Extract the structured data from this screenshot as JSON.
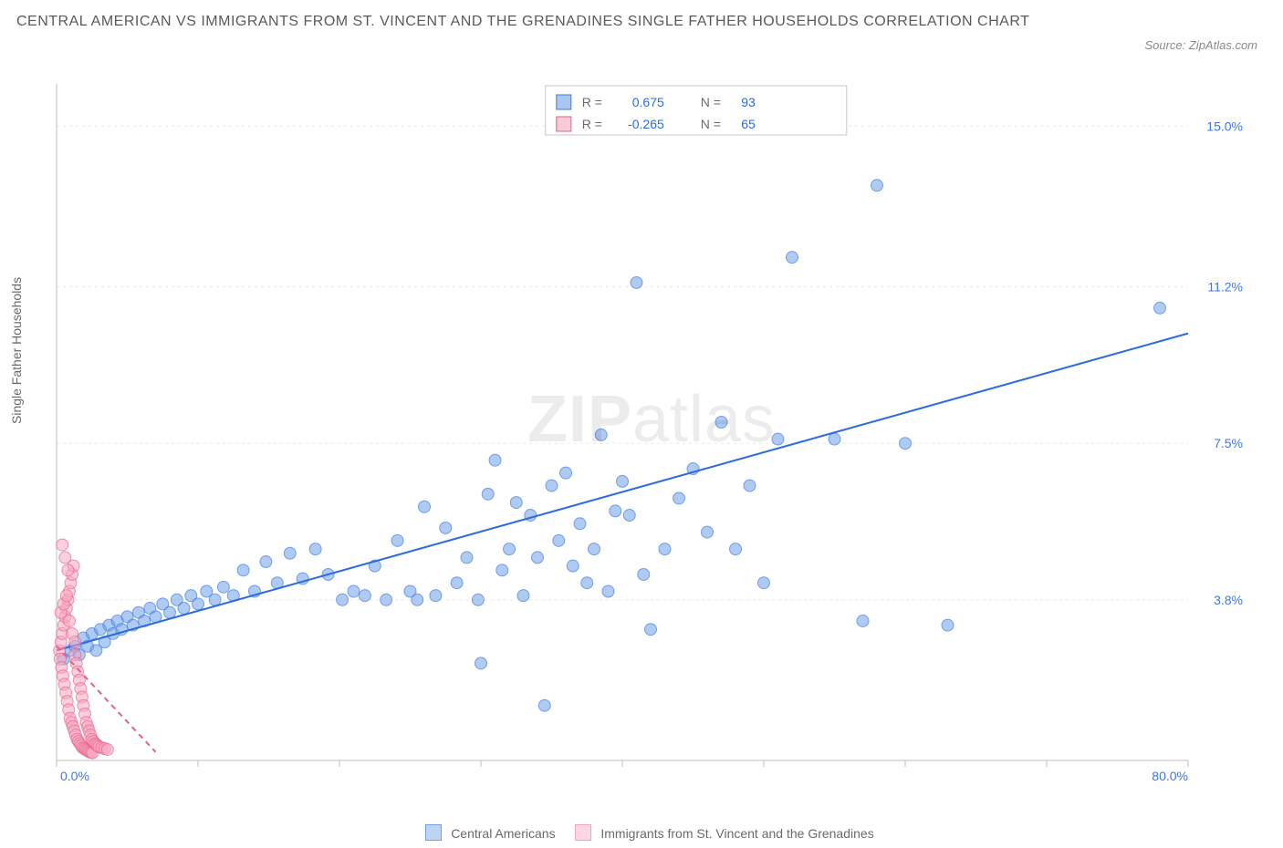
{
  "title": "CENTRAL AMERICAN VS IMMIGRANTS FROM ST. VINCENT AND THE GRENADINES SINGLE FATHER HOUSEHOLDS CORRELATION CHART",
  "source": "Source: ZipAtlas.com",
  "ylabel": "Single Father Households",
  "watermark_bold": "ZIP",
  "watermark_rest": "atlas",
  "chart": {
    "type": "scatter",
    "xlim": [
      0,
      80
    ],
    "ylim": [
      0,
      16
    ],
    "x_tick_step": 10,
    "x_tick_labels": {
      "0": "0.0%",
      "80": "80.0%"
    },
    "y_ticks": [
      3.8,
      7.5,
      11.2,
      15.0
    ],
    "y_tick_labels": [
      "3.8%",
      "7.5%",
      "11.2%",
      "15.0%"
    ],
    "grid_color": "#e7e7e7",
    "axis_color": "#bfbfbf",
    "tick_color": "#bfbfbf",
    "ytick_text_color": "#3b78e7",
    "xtick_text_color": "#3b78e7",
    "background": "#ffffff",
    "point_radius": 6.5,
    "point_opacity": 0.55,
    "trend_width": 2
  },
  "series": [
    {
      "id": "central_americans",
      "label": "Central Americans",
      "color": "#6fa1e8",
      "stroke": "#3b78e7",
      "trend_color": "#2d6cdf",
      "R": "0.675",
      "N": "93",
      "trend": {
        "x1": 0,
        "y1": 2.6,
        "x2": 80,
        "y2": 10.1
      },
      "points": [
        [
          0.5,
          2.4
        ],
        [
          1.0,
          2.6
        ],
        [
          1.3,
          2.7
        ],
        [
          1.6,
          2.5
        ],
        [
          1.9,
          2.9
        ],
        [
          2.2,
          2.7
        ],
        [
          2.5,
          3.0
        ],
        [
          2.8,
          2.6
        ],
        [
          3.1,
          3.1
        ],
        [
          3.4,
          2.8
        ],
        [
          3.7,
          3.2
        ],
        [
          4.0,
          3.0
        ],
        [
          4.3,
          3.3
        ],
        [
          4.6,
          3.1
        ],
        [
          5.0,
          3.4
        ],
        [
          5.4,
          3.2
        ],
        [
          5.8,
          3.5
        ],
        [
          6.2,
          3.3
        ],
        [
          6.6,
          3.6
        ],
        [
          7.0,
          3.4
        ],
        [
          7.5,
          3.7
        ],
        [
          8.0,
          3.5
        ],
        [
          8.5,
          3.8
        ],
        [
          9.0,
          3.6
        ],
        [
          9.5,
          3.9
        ],
        [
          10.0,
          3.7
        ],
        [
          10.6,
          4.0
        ],
        [
          11.2,
          3.8
        ],
        [
          11.8,
          4.1
        ],
        [
          12.5,
          3.9
        ],
        [
          13.2,
          4.5
        ],
        [
          14.0,
          4.0
        ],
        [
          14.8,
          4.7
        ],
        [
          15.6,
          4.2
        ],
        [
          16.5,
          4.9
        ],
        [
          17.4,
          4.3
        ],
        [
          18.3,
          5.0
        ],
        [
          19.2,
          4.4
        ],
        [
          20.2,
          3.8
        ],
        [
          21.0,
          4.0
        ],
        [
          21.8,
          3.9
        ],
        [
          22.5,
          4.6
        ],
        [
          23.3,
          3.8
        ],
        [
          24.1,
          5.2
        ],
        [
          25.0,
          4.0
        ],
        [
          25.5,
          3.8
        ],
        [
          26.0,
          6.0
        ],
        [
          26.8,
          3.9
        ],
        [
          27.5,
          5.5
        ],
        [
          28.3,
          4.2
        ],
        [
          29.0,
          4.8
        ],
        [
          29.8,
          3.8
        ],
        [
          30.0,
          2.3
        ],
        [
          30.5,
          6.3
        ],
        [
          31.0,
          7.1
        ],
        [
          31.5,
          4.5
        ],
        [
          32.0,
          5.0
        ],
        [
          32.5,
          6.1
        ],
        [
          33.0,
          3.9
        ],
        [
          33.5,
          5.8
        ],
        [
          34.0,
          4.8
        ],
        [
          34.5,
          1.3
        ],
        [
          35.0,
          6.5
        ],
        [
          35.5,
          5.2
        ],
        [
          36.0,
          6.8
        ],
        [
          36.5,
          4.6
        ],
        [
          37.0,
          5.6
        ],
        [
          37.5,
          4.2
        ],
        [
          38.0,
          5.0
        ],
        [
          38.5,
          7.7
        ],
        [
          39.0,
          4.0
        ],
        [
          39.5,
          5.9
        ],
        [
          40.0,
          6.6
        ],
        [
          40.5,
          5.8
        ],
        [
          41.0,
          11.3
        ],
        [
          41.5,
          4.4
        ],
        [
          42.0,
          3.1
        ],
        [
          43.0,
          5.0
        ],
        [
          44.0,
          6.2
        ],
        [
          45.0,
          6.9
        ],
        [
          46.0,
          5.4
        ],
        [
          47.0,
          8.0
        ],
        [
          48.0,
          5.0
        ],
        [
          49.0,
          6.5
        ],
        [
          50.0,
          4.2
        ],
        [
          51.0,
          7.6
        ],
        [
          52.0,
          11.9
        ],
        [
          55.0,
          7.6
        ],
        [
          57.0,
          3.3
        ],
        [
          58.0,
          13.6
        ],
        [
          60.0,
          7.5
        ],
        [
          63.0,
          3.2
        ],
        [
          78.0,
          10.7
        ]
      ]
    },
    {
      "id": "svg_immigrants",
      "label": "Immigrants from St. Vincent and the Grenadines",
      "color": "#f7a8c0",
      "stroke": "#e85d8a",
      "trend_color": "#e85d8a",
      "trend_dash": "6 5",
      "R": "-0.265",
      "N": "65",
      "trend": {
        "x1": 0,
        "y1": 2.7,
        "x2": 7,
        "y2": 0.2
      },
      "points": [
        [
          0.2,
          2.6
        ],
        [
          0.25,
          2.4
        ],
        [
          0.3,
          2.8
        ],
        [
          0.35,
          2.2
        ],
        [
          0.4,
          3.0
        ],
        [
          0.45,
          2.0
        ],
        [
          0.5,
          3.2
        ],
        [
          0.55,
          1.8
        ],
        [
          0.6,
          3.4
        ],
        [
          0.65,
          1.6
        ],
        [
          0.7,
          3.6
        ],
        [
          0.75,
          1.4
        ],
        [
          0.8,
          3.8
        ],
        [
          0.85,
          1.2
        ],
        [
          0.9,
          4.0
        ],
        [
          0.95,
          1.0
        ],
        [
          1.0,
          4.2
        ],
        [
          1.05,
          0.9
        ],
        [
          1.1,
          4.4
        ],
        [
          1.15,
          0.8
        ],
        [
          1.2,
          4.6
        ],
        [
          1.25,
          0.7
        ],
        [
          1.3,
          2.5
        ],
        [
          1.35,
          0.6
        ],
        [
          1.4,
          2.3
        ],
        [
          1.45,
          0.5
        ],
        [
          1.5,
          2.1
        ],
        [
          1.55,
          0.45
        ],
        [
          1.6,
          1.9
        ],
        [
          1.65,
          0.4
        ],
        [
          1.7,
          1.7
        ],
        [
          1.75,
          0.35
        ],
        [
          1.8,
          1.5
        ],
        [
          1.85,
          0.3
        ],
        [
          1.9,
          1.3
        ],
        [
          1.95,
          0.28
        ],
        [
          2.0,
          1.1
        ],
        [
          2.05,
          0.26
        ],
        [
          2.1,
          0.9
        ],
        [
          2.15,
          0.24
        ],
        [
          2.2,
          0.8
        ],
        [
          2.25,
          0.22
        ],
        [
          2.3,
          0.7
        ],
        [
          2.35,
          0.2
        ],
        [
          2.4,
          0.6
        ],
        [
          2.45,
          0.19
        ],
        [
          2.5,
          0.5
        ],
        [
          2.55,
          0.18
        ],
        [
          2.6,
          0.45
        ],
        [
          2.7,
          0.4
        ],
        [
          2.8,
          0.38
        ],
        [
          2.9,
          0.35
        ],
        [
          3.0,
          0.32
        ],
        [
          3.2,
          0.3
        ],
        [
          3.4,
          0.28
        ],
        [
          3.6,
          0.26
        ],
        [
          0.4,
          5.1
        ],
        [
          0.6,
          4.8
        ],
        [
          0.8,
          4.5
        ],
        [
          0.3,
          3.5
        ],
        [
          0.5,
          3.7
        ],
        [
          0.7,
          3.9
        ],
        [
          0.9,
          3.3
        ],
        [
          1.1,
          3.0
        ],
        [
          1.3,
          2.8
        ]
      ]
    }
  ],
  "legend_box": {
    "border_color": "#c7c7c7",
    "bg": "#ffffff",
    "label_R": "R =",
    "label_N": "N =",
    "text_color": "#6a6a6a",
    "value_color": "#2d6cdf"
  },
  "bottom_legend": {
    "items": [
      {
        "swatch_fill": "#bfd4f5",
        "swatch_border": "#6fa1e8",
        "label": "Central Americans"
      },
      {
        "swatch_fill": "#fcd7e3",
        "swatch_border": "#f2a3bd",
        "label": "Immigrants from St. Vincent and the Grenadines"
      }
    ]
  }
}
